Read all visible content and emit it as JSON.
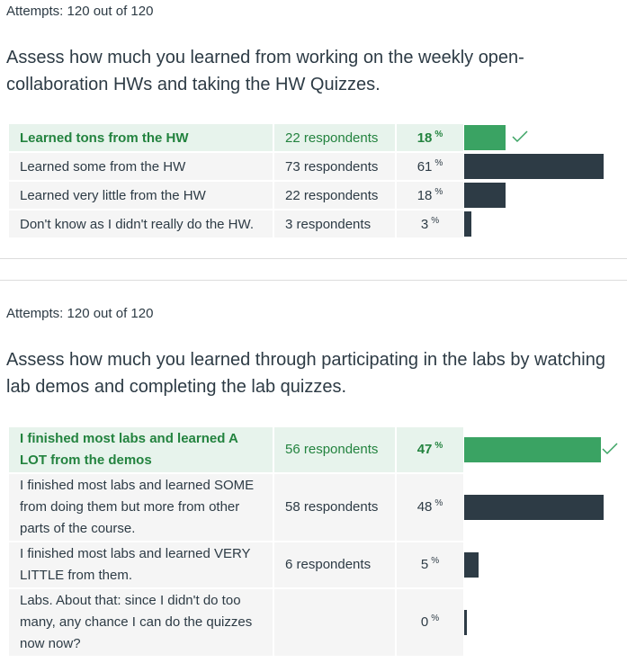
{
  "question1": {
    "attempts": "Attempts: 120 out of 120",
    "text": "Assess how much you learned from working on the weekly open-collaboration HWs and taking the HW Quizzes.",
    "answers": [
      {
        "label": "Learned tons from the HW",
        "respondents": "22 respondents",
        "percent": "18",
        "value": 18,
        "correct": true
      },
      {
        "label": "Learned some from the HW",
        "respondents": "73 respondents",
        "percent": "61",
        "value": 61,
        "correct": false
      },
      {
        "label": "Learned very little from the HW",
        "respondents": "22 respondents",
        "percent": "18",
        "value": 18,
        "correct": false
      },
      {
        "label": "Don't know as I didn't really do the HW.",
        "respondents": "3 respondents",
        "percent": "3",
        "value": 3,
        "correct": false
      }
    ]
  },
  "question2": {
    "attempts": "Attempts: 120 out of 120",
    "text": "Assess how much you learned through participating in the labs by watching lab demos and completing the lab quizzes.",
    "answers": [
      {
        "label": "I finished most labs and learned A LOT from the demos",
        "respondents": "56 respondents",
        "percent": "47",
        "value": 47,
        "correct": true
      },
      {
        "label": "I finished most labs and learned SOME from doing them but more from other parts of the course.",
        "respondents": "58 respondents",
        "percent": "48",
        "value": 48,
        "correct": false
      },
      {
        "label": "I finished most labs and learned VERY LITTLE from them.",
        "respondents": "6 respondents",
        "percent": "5",
        "value": 5,
        "correct": false
      },
      {
        "label": "Labs. About that: since I didn't do too many, any chance I can do the quizzes now now?",
        "respondents": "",
        "percent": "0",
        "value": 0,
        "correct": false
      }
    ]
  },
  "percent_symbol": "%",
  "colors": {
    "correct_bg": "#e7f3ec",
    "correct_text": "#23833f",
    "correct_bar": "#3aa363",
    "bar": "#2d3b45"
  }
}
